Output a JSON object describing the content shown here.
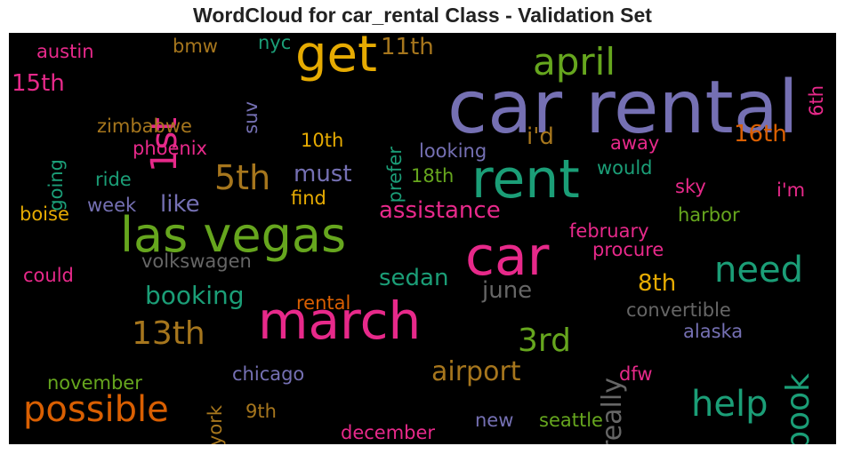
{
  "title": "WordCloud for car_rental Class - Validation Set",
  "palette": {
    "purple": "#7570b3",
    "green": "#1b9e77",
    "orange": "#d95f02",
    "magenta": "#e7298a",
    "lime": "#66a61e",
    "gold": "#e6ab02",
    "brown": "#a6761d",
    "gray": "#666666"
  },
  "chart_data": {
    "type": "wordcloud",
    "title": "WordCloud for car_rental Class - Validation Set",
    "words": [
      {
        "text": "car rental",
        "color": "purple"
      },
      {
        "text": "rent",
        "color": "green"
      },
      {
        "text": "car",
        "color": "magenta"
      },
      {
        "text": "march",
        "color": "magenta"
      },
      {
        "text": "las vegas",
        "color": "lime"
      },
      {
        "text": "get",
        "color": "gold"
      },
      {
        "text": "april",
        "color": "lime"
      },
      {
        "text": "possible",
        "color": "orange"
      },
      {
        "text": "help",
        "color": "green"
      },
      {
        "text": "need",
        "color": "green"
      },
      {
        "text": "1st",
        "color": "magenta"
      },
      {
        "text": "13th",
        "color": "brown"
      },
      {
        "text": "5th",
        "color": "brown"
      },
      {
        "text": "3rd",
        "color": "lime"
      },
      {
        "text": "book",
        "color": "green"
      },
      {
        "text": "really",
        "color": "gray"
      },
      {
        "text": "airport",
        "color": "brown"
      },
      {
        "text": "booking",
        "color": "green"
      },
      {
        "text": "like",
        "color": "purple"
      },
      {
        "text": "must",
        "color": "purple"
      },
      {
        "text": "assistance",
        "color": "magenta"
      },
      {
        "text": "sedan",
        "color": "green"
      },
      {
        "text": "june",
        "color": "gray"
      },
      {
        "text": "16th",
        "color": "orange"
      },
      {
        "text": "i'd",
        "color": "brown"
      },
      {
        "text": "11th",
        "color": "brown"
      },
      {
        "text": "15th",
        "color": "magenta"
      },
      {
        "text": "8th",
        "color": "gold"
      },
      {
        "text": "convertible",
        "color": "gray"
      },
      {
        "text": "volkswagen",
        "color": "gray"
      },
      {
        "text": "austin",
        "color": "magenta"
      },
      {
        "text": "bmw",
        "color": "brown"
      },
      {
        "text": "nyc",
        "color": "green"
      },
      {
        "text": "suv",
        "color": "purple"
      },
      {
        "text": "prefer",
        "color": "green"
      },
      {
        "text": "6th",
        "color": "magenta"
      },
      {
        "text": "zimbabwe",
        "color": "brown"
      },
      {
        "text": "going",
        "color": "green"
      },
      {
        "text": "phoenix",
        "color": "magenta"
      },
      {
        "text": "10th",
        "color": "gold"
      },
      {
        "text": "looking",
        "color": "purple"
      },
      {
        "text": "away",
        "color": "magenta"
      },
      {
        "text": "would",
        "color": "green"
      },
      {
        "text": "ride",
        "color": "green"
      },
      {
        "text": "18th",
        "color": "lime"
      },
      {
        "text": "sky",
        "color": "magenta"
      },
      {
        "text": "i'm",
        "color": "magenta"
      },
      {
        "text": "week",
        "color": "purple"
      },
      {
        "text": "find",
        "color": "gold"
      },
      {
        "text": "boise",
        "color": "gold"
      },
      {
        "text": "harbor",
        "color": "lime"
      },
      {
        "text": "february",
        "color": "magenta"
      },
      {
        "text": "procure",
        "color": "magenta"
      },
      {
        "text": "could",
        "color": "magenta"
      },
      {
        "text": "rental",
        "color": "orange"
      },
      {
        "text": "alaska",
        "color": "purple"
      },
      {
        "text": "chicago",
        "color": "purple"
      },
      {
        "text": "york",
        "color": "brown"
      },
      {
        "text": "dfw",
        "color": "magenta"
      },
      {
        "text": "november",
        "color": "lime"
      },
      {
        "text": "9th",
        "color": "brown"
      },
      {
        "text": "new",
        "color": "purple"
      },
      {
        "text": "seattle",
        "color": "lime"
      },
      {
        "text": "december",
        "color": "magenta"
      }
    ]
  }
}
